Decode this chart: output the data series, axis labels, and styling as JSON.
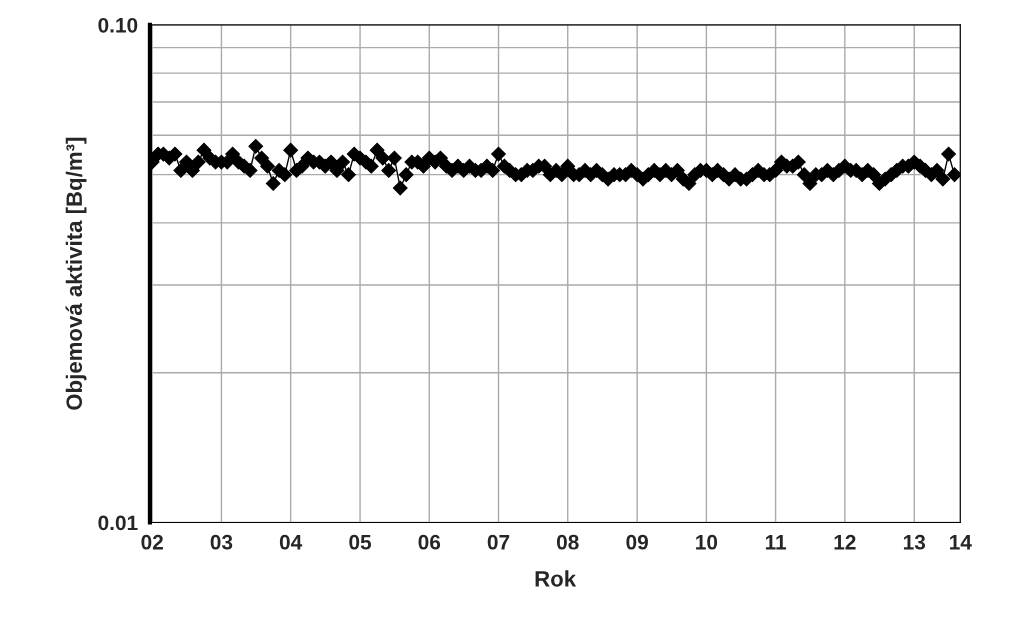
{
  "chart_data": {
    "type": "line",
    "xlabel": "Rok",
    "ylabel": "Objemová aktivita [Bq/m³]",
    "x": [
      "2002-01",
      "2002-02",
      "2002-03",
      "2002-04",
      "2002-05",
      "2002-06",
      "2002-07",
      "2002-08",
      "2002-09",
      "2002-10",
      "2002-11",
      "2002-12",
      "2003-01",
      "2003-02",
      "2003-03",
      "2003-04",
      "2003-05",
      "2003-06",
      "2003-07",
      "2003-08",
      "2003-09",
      "2003-10",
      "2003-11",
      "2003-12",
      "2004-01",
      "2004-02",
      "2004-03",
      "2004-04",
      "2004-05",
      "2004-06",
      "2004-07",
      "2004-08",
      "2004-09",
      "2004-10",
      "2004-11",
      "2004-12",
      "2005-01",
      "2005-02",
      "2005-03",
      "2005-04",
      "2005-05",
      "2005-06",
      "2005-07",
      "2005-08",
      "2005-09",
      "2005-10",
      "2005-11",
      "2005-12",
      "2006-01",
      "2006-02",
      "2006-03",
      "2006-04",
      "2006-05",
      "2006-06",
      "2006-07",
      "2006-08",
      "2006-09",
      "2006-10",
      "2006-11",
      "2006-12",
      "2007-01",
      "2007-02",
      "2007-03",
      "2007-04",
      "2007-05",
      "2007-06",
      "2007-07",
      "2007-08",
      "2007-09",
      "2007-10",
      "2007-11",
      "2007-12",
      "2008-01",
      "2008-02",
      "2008-03",
      "2008-04",
      "2008-05",
      "2008-06",
      "2008-07",
      "2008-08",
      "2008-09",
      "2008-10",
      "2008-11",
      "2008-12",
      "2009-01",
      "2009-02",
      "2009-03",
      "2009-04",
      "2009-05",
      "2009-06",
      "2009-07",
      "2009-08",
      "2009-09",
      "2009-10",
      "2009-11",
      "2009-12",
      "2010-01",
      "2010-02",
      "2010-03",
      "2010-04",
      "2010-05",
      "2010-06",
      "2010-07",
      "2010-08",
      "2010-09",
      "2010-10",
      "2010-11",
      "2010-12",
      "2011-01",
      "2011-02",
      "2011-03",
      "2011-04",
      "2011-05",
      "2011-06",
      "2011-07",
      "2011-08",
      "2011-09",
      "2011-10",
      "2011-11",
      "2011-12",
      "2012-01",
      "2012-02",
      "2012-03",
      "2012-04",
      "2012-05",
      "2012-06",
      "2012-07",
      "2012-08",
      "2012-09",
      "2012-10",
      "2012-11",
      "2012-12",
      "2013-01",
      "2013-02",
      "2013-03",
      "2013-04",
      "2013-05",
      "2013-06",
      "2013-07",
      "2013-08"
    ],
    "series": [
      {
        "color": "#000000",
        "values": [
          0.053,
          0.055,
          0.055,
          0.054,
          0.055,
          0.051,
          0.053,
          0.051,
          0.053,
          0.056,
          0.054,
          0.053,
          0.053,
          0.053,
          0.055,
          0.053,
          0.052,
          0.051,
          0.057,
          0.054,
          0.052,
          0.048,
          0.051,
          0.05,
          0.056,
          0.051,
          0.052,
          0.054,
          0.053,
          0.053,
          0.052,
          0.053,
          0.051,
          0.053,
          0.05,
          0.055,
          0.054,
          0.053,
          0.052,
          0.056,
          0.054,
          0.051,
          0.054,
          0.047,
          0.05,
          0.053,
          0.053,
          0.052,
          0.054,
          0.053,
          0.054,
          0.052,
          0.051,
          0.052,
          0.051,
          0.052,
          0.051,
          0.051,
          0.052,
          0.051,
          0.055,
          0.052,
          0.051,
          0.05,
          0.05,
          0.051,
          0.051,
          0.052,
          0.052,
          0.05,
          0.051,
          0.05,
          0.052,
          0.05,
          0.05,
          0.051,
          0.05,
          0.051,
          0.05,
          0.049,
          0.05,
          0.05,
          0.05,
          0.051,
          0.05,
          0.049,
          0.05,
          0.051,
          0.05,
          0.051,
          0.05,
          0.051,
          0.049,
          0.048,
          0.05,
          0.051,
          0.051,
          0.05,
          0.051,
          0.05,
          0.049,
          0.05,
          0.049,
          0.049,
          0.05,
          0.051,
          0.05,
          0.05,
          0.051,
          0.053,
          0.052,
          0.052,
          0.053,
          0.05,
          0.048,
          0.05,
          0.05,
          0.051,
          0.05,
          0.051,
          0.052,
          0.051,
          0.051,
          0.05,
          0.051,
          0.05,
          0.048,
          0.049,
          0.05,
          0.051,
          0.052,
          0.052,
          0.053,
          0.052,
          0.051,
          0.05,
          0.051,
          0.049,
          0.055,
          0.05
        ]
      }
    ],
    "log": "y",
    "ylim": [
      0.01,
      0.1
    ],
    "yticks": [
      {
        "value": 0.01,
        "label": "0.01"
      },
      {
        "value": 0.02,
        "label": null
      },
      {
        "value": 0.03,
        "label": null
      },
      {
        "value": 0.04,
        "label": null
      },
      {
        "value": 0.05,
        "label": null
      },
      {
        "value": 0.06,
        "label": null
      },
      {
        "value": 0.07,
        "label": null
      },
      {
        "value": 0.08,
        "label": null
      },
      {
        "value": 0.09,
        "label": null
      },
      {
        "value": 0.1,
        "label": "0.10"
      }
    ],
    "xlim": [
      "2001-12-20",
      "2013-09-01"
    ],
    "xticks": [
      {
        "value": "2002-01",
        "label": "02"
      },
      {
        "value": "2003-01",
        "label": "03"
      },
      {
        "value": "2004-01",
        "label": "04"
      },
      {
        "value": "2005-01",
        "label": "05"
      },
      {
        "value": "2006-01",
        "label": "06"
      },
      {
        "value": "2007-01",
        "label": "07"
      },
      {
        "value": "2008-01",
        "label": "08"
      },
      {
        "value": "2009-01",
        "label": "09"
      },
      {
        "value": "2010-01",
        "label": "10"
      },
      {
        "value": "2011-01",
        "label": "11"
      },
      {
        "value": "2012-01",
        "label": "12"
      },
      {
        "value": "2013-01",
        "label": "13"
      },
      {
        "value": "2013-09-01",
        "label": "14"
      }
    ],
    "grid": true,
    "marker": "diamond",
    "line_style": "solid"
  }
}
